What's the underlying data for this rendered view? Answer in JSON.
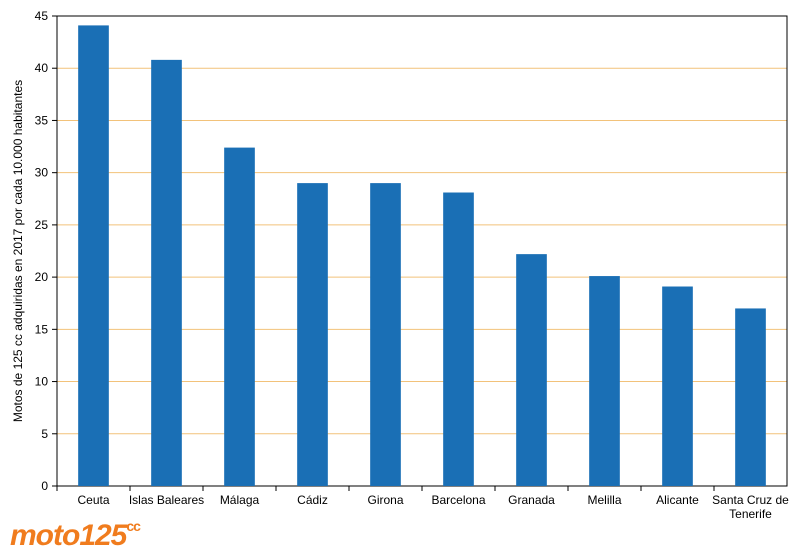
{
  "chart_data": {
    "type": "bar",
    "y_label": "Motos de 125 cc adquiridas en 2017 por cada 10.000 habitantes",
    "categories": [
      "Ceuta",
      "Islas Baleares",
      "Málaga",
      "Cádiz",
      "Girona",
      "Barcelona",
      "Granada",
      "Melilla",
      "Alicante",
      "Santa Cruz de Tenerife"
    ],
    "values": [
      44.1,
      40.8,
      32.4,
      29.0,
      29.0,
      28.1,
      22.2,
      20.1,
      19.1,
      17.0
    ],
    "color": "#1a6fb5",
    "ylim": [
      0,
      45
    ],
    "yticks": [
      0,
      5,
      10,
      15,
      20,
      25,
      30,
      35,
      40,
      45
    ],
    "grid": true,
    "grid_color": "#f2c27a"
  },
  "logo": {
    "text": "moto125",
    "sup": "cc"
  }
}
